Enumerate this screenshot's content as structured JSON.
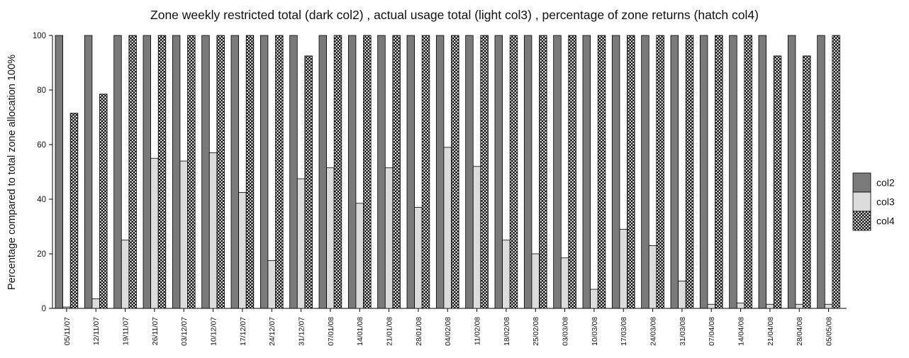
{
  "chart_data": {
    "type": "bar",
    "title": "Zone weekly restricted total (dark col2) , actual usage total (light col3) , percentage of zone returns (hatch col4)",
    "xlabel": "",
    "ylabel": "Percentage compared to total zone allocation 100%",
    "ylim": [
      0,
      100
    ],
    "yticks": [
      0,
      20,
      40,
      60,
      80,
      100
    ],
    "grid": false,
    "legend_position": "right",
    "categories": [
      "05/11/07",
      "12/11/07",
      "19/11/07",
      "26/11/07",
      "03/12/07",
      "10/12/07",
      "17/12/07",
      "24/12/07",
      "31/12/07",
      "07/01/08",
      "14/01/08",
      "21/01/08",
      "28/01/08",
      "04/02/08",
      "11/02/08",
      "18/02/08",
      "25/02/08",
      "03/03/08",
      "10/03/08",
      "17/03/08",
      "24/03/08",
      "31/03/08",
      "07/04/08",
      "14/04/08",
      "21/04/08",
      "28/04/08",
      "05/05/08"
    ],
    "series": [
      {
        "name": "col2",
        "pattern": "dark",
        "color": "#7a7a7a",
        "values": [
          100,
          100,
          100,
          100,
          100,
          100,
          100,
          100,
          100,
          100,
          100,
          100,
          100,
          100,
          100,
          100,
          100,
          100,
          100,
          100,
          100,
          100,
          100,
          100,
          100,
          100,
          100
        ]
      },
      {
        "name": "col3",
        "pattern": "light",
        "color": "#dcdcdc",
        "values": [
          0.5,
          3.5,
          25,
          55,
          54,
          57,
          42.5,
          17.5,
          47.5,
          51.5,
          38.5,
          51.5,
          37,
          59,
          52,
          25,
          20,
          18.5,
          7,
          29,
          23,
          10,
          1.5,
          2,
          1.5,
          1.5,
          1.5
        ]
      },
      {
        "name": "col4",
        "pattern": "hatch",
        "color": "#ffffff",
        "values": [
          71.5,
          78.5,
          100,
          100,
          100,
          100,
          100,
          100,
          92.5,
          100,
          100,
          100,
          100,
          100,
          100,
          100,
          100,
          100,
          100,
          100,
          100,
          100,
          100,
          100,
          92.5,
          92.5,
          100
        ]
      }
    ]
  }
}
